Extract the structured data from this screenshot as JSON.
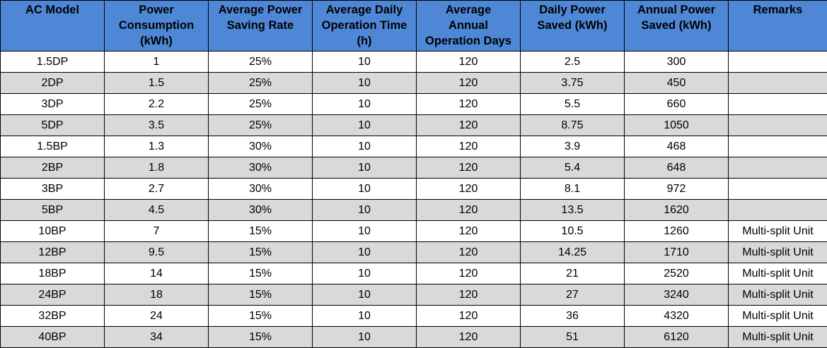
{
  "headers": [
    [
      "AC Model"
    ],
    [
      "Power",
      "Consumption",
      "(kWh)"
    ],
    [
      "Average Power",
      "Saving Rate"
    ],
    [
      "Average Daily",
      "Operation Time",
      "(h)"
    ],
    [
      "Average",
      "Annual",
      "Operation Days"
    ],
    [
      "Daily Power",
      "Saved (kWh)"
    ],
    [
      "Annual Power",
      "Saved (kWh)"
    ],
    [
      "Remarks"
    ]
  ],
  "rows": [
    [
      "1.5DP",
      "1",
      "25%",
      "10",
      "120",
      "2.5",
      "300",
      ""
    ],
    [
      "2DP",
      "1.5",
      "25%",
      "10",
      "120",
      "3.75",
      "450",
      ""
    ],
    [
      "3DP",
      "2.2",
      "25%",
      "10",
      "120",
      "5.5",
      "660",
      ""
    ],
    [
      "5DP",
      "3.5",
      "25%",
      "10",
      "120",
      "8.75",
      "1050",
      ""
    ],
    [
      "1.5BP",
      "1.3",
      "30%",
      "10",
      "120",
      "3.9",
      "468",
      ""
    ],
    [
      "2BP",
      "1.8",
      "30%",
      "10",
      "120",
      "5.4",
      "648",
      ""
    ],
    [
      "3BP",
      "2.7",
      "30%",
      "10",
      "120",
      "8.1",
      "972",
      ""
    ],
    [
      "5BP",
      "4.5",
      "30%",
      "10",
      "120",
      "13.5",
      "1620",
      ""
    ],
    [
      "10BP",
      "7",
      "15%",
      "10",
      "120",
      "10.5",
      "1260",
      "Multi-split Unit"
    ],
    [
      "12BP",
      "9.5",
      "15%",
      "10",
      "120",
      "14.25",
      "1710",
      "Multi-split Unit"
    ],
    [
      "18BP",
      "14",
      "15%",
      "10",
      "120",
      "21",
      "2520",
      "Multi-split Unit"
    ],
    [
      "24BP",
      "18",
      "15%",
      "10",
      "120",
      "27",
      "3240",
      "Multi-split Unit"
    ],
    [
      "32BP",
      "24",
      "15%",
      "10",
      "120",
      "36",
      "4320",
      "Multi-split Unit"
    ],
    [
      "40BP",
      "34",
      "15%",
      "10",
      "120",
      "51",
      "6120",
      "Multi-split Unit"
    ]
  ],
  "colors": {
    "header_bg": "#4f87d7",
    "alt_row_bg": "#d9d9d9",
    "row_bg": "#ffffff",
    "border": "#000000"
  }
}
